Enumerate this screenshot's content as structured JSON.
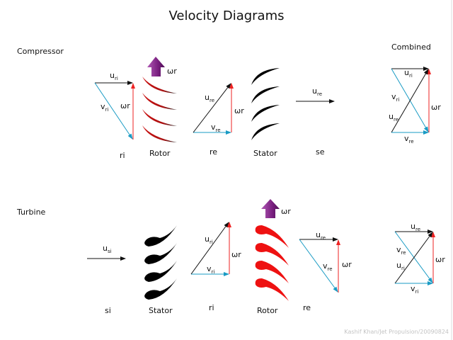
{
  "title": "Velocity Diagrams",
  "watermark": "Kashif Khan/Jet Propulsion/20090824",
  "colors": {
    "absolute": "#1a9bc4",
    "relative": "#111111",
    "blade_speed": "#ee2222",
    "rotation_arrow": "#8a2a8e",
    "rotor_blade": "#cc1111",
    "stator_blade": "#000000"
  },
  "compressor": {
    "heading": "Compressor",
    "combined_heading": "Combined",
    "ri": {
      "caption": "ri",
      "u": {
        "m": "u",
        "s": "ri"
      },
      "v": {
        "m": "v",
        "s": "ri"
      },
      "w": "ωr"
    },
    "rotor": {
      "caption": "Rotor",
      "w": "ωr"
    },
    "re": {
      "caption": "re",
      "u": {
        "m": "u",
        "s": "re"
      },
      "v": {
        "m": "v",
        "s": "re"
      },
      "w": "ωr"
    },
    "stator": {
      "caption": "Stator"
    },
    "se": {
      "caption": "se",
      "u": {
        "m": "u",
        "s": "re"
      }
    },
    "combined": {
      "u_top": {
        "m": "u",
        "s": "ri"
      },
      "v_diag": {
        "m": "v",
        "s": "ri"
      },
      "u_diag": {
        "m": "u",
        "s": "re"
      },
      "v_bottom": {
        "m": "v",
        "s": "re"
      },
      "w": "ωr"
    }
  },
  "turbine": {
    "heading": "Turbine",
    "si": {
      "caption": "si",
      "u": {
        "m": "u",
        "s": "si"
      }
    },
    "stator": {
      "caption": "Stator"
    },
    "ri": {
      "caption": "ri",
      "u": {
        "m": "u",
        "s": "ri"
      },
      "v": {
        "m": "v",
        "s": "ri"
      },
      "w": "ωr"
    },
    "rotor": {
      "caption": "Rotor",
      "w": "ωr"
    },
    "re": {
      "caption": "re",
      "u": {
        "m": "u",
        "s": "re"
      },
      "v": {
        "m": "v",
        "s": "re"
      },
      "w": "ωr"
    },
    "combined": {
      "u_top": {
        "m": "u",
        "s": "re"
      },
      "v_diag": {
        "m": "v",
        "s": "re"
      },
      "u_diag": {
        "m": "u",
        "s": "ri"
      },
      "v_bottom": {
        "m": "v",
        "s": "ri"
      },
      "w": "ωr"
    }
  }
}
